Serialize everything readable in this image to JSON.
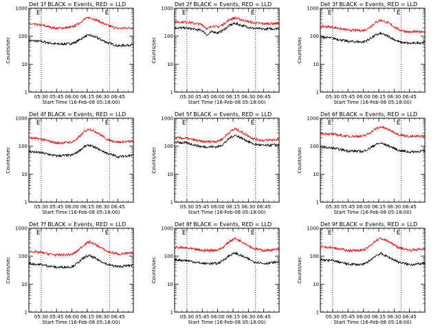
{
  "page": {
    "legend_note": "BLACK = Events, RED = LLD"
  },
  "chart_data": [
    {
      "type": "line",
      "title": "Det 1f BLACK = Events, RED = LLD",
      "xlabel": "Start Time (16-Feb-08 05:18:00)",
      "ylabel": "Counts/sec",
      "ylim": [
        1,
        1000
      ],
      "yscale": "log",
      "ytick_labels": [
        "1",
        "10",
        "100",
        "1000"
      ],
      "xtick_labels": [
        "05:30",
        "05:45",
        "06:00",
        "06:15",
        "06:30",
        "06:45"
      ],
      "xlim": [
        "05:18",
        "07:00"
      ],
      "grid": false,
      "event_markers": [
        {
          "time": "05:30",
          "label": "E"
        },
        {
          "time": "06:37",
          "label": "E"
        }
      ],
      "series": [
        {
          "name": "Events",
          "color": "#000000",
          "x": [
            "05:18",
            "05:30",
            "05:45",
            "06:00",
            "06:05",
            "06:12",
            "06:17",
            "06:24",
            "06:35",
            "06:45",
            "07:00"
          ],
          "y": [
            70,
            65,
            52,
            55,
            65,
            95,
            110,
            90,
            58,
            45,
            50
          ]
        },
        {
          "name": "LLD",
          "color": "#ff0000",
          "x": [
            "05:18",
            "05:30",
            "05:45",
            "06:00",
            "06:05",
            "06:12",
            "06:17",
            "06:24",
            "06:35",
            "06:45",
            "07:00"
          ],
          "y": [
            270,
            250,
            190,
            210,
            260,
            400,
            470,
            380,
            240,
            190,
            200
          ]
        }
      ]
    },
    {
      "type": "line",
      "title": "Det 2f BLACK = Events, RED = LLD",
      "xlabel": "Start Time (16-Feb-08 05:18:00)",
      "ylabel": "Counts/sec",
      "ylim": [
        1,
        1000
      ],
      "yscale": "log",
      "ytick_labels": [
        "1",
        "10",
        "100",
        "1000"
      ],
      "xtick_labels": [
        "05:30",
        "05:45",
        "06:00",
        "06:15",
        "06:30",
        "06:45"
      ],
      "xlim": [
        "05:18",
        "07:00"
      ],
      "grid": false,
      "event_markers": [
        {
          "time": "05:30",
          "label": "E"
        },
        {
          "time": "06:37",
          "label": "E"
        }
      ],
      "series": [
        {
          "name": "Events",
          "color": "#000000",
          "x": [
            "05:18",
            "05:30",
            "05:45",
            "05:50",
            "05:55",
            "06:00",
            "06:05",
            "06:12",
            "06:17",
            "06:24",
            "06:35",
            "06:45",
            "07:00"
          ],
          "y": [
            200,
            195,
            160,
            110,
            150,
            130,
            160,
            250,
            290,
            240,
            190,
            180,
            190
          ]
        },
        {
          "name": "LLD",
          "color": "#ff0000",
          "x": [
            "05:18",
            "05:30",
            "05:45",
            "05:50",
            "05:55",
            "06:00",
            "06:05",
            "06:12",
            "06:17",
            "06:24",
            "06:35",
            "06:45",
            "07:00"
          ],
          "y": [
            330,
            320,
            260,
            180,
            240,
            210,
            260,
            400,
            450,
            380,
            300,
            280,
            290
          ]
        }
      ]
    },
    {
      "type": "line",
      "title": "Det 3f BLACK = Events, RED = LLD",
      "xlabel": "Start Time (16-Feb-08 05:18:00)",
      "ylabel": "Counts/sec",
      "ylim": [
        1,
        1000
      ],
      "yscale": "log",
      "ytick_labels": [
        "1",
        "10",
        "100",
        "1000"
      ],
      "xtick_labels": [
        "05:30",
        "05:45",
        "06:00",
        "06:15",
        "06:30",
        "06:45"
      ],
      "xlim": [
        "05:18",
        "07:00"
      ],
      "grid": false,
      "event_markers": [
        {
          "time": "05:30",
          "label": "E"
        },
        {
          "time": "06:37",
          "label": "E"
        }
      ],
      "series": [
        {
          "name": "Events",
          "color": "#000000",
          "x": [
            "05:18",
            "05:30",
            "05:45",
            "06:00",
            "06:05",
            "06:12",
            "06:17",
            "06:24",
            "06:35",
            "06:45",
            "07:00"
          ],
          "y": [
            95,
            85,
            65,
            62,
            75,
            110,
            125,
            100,
            62,
            55,
            60
          ]
        },
        {
          "name": "LLD",
          "color": "#ff0000",
          "x": [
            "05:18",
            "05:30",
            "05:45",
            "06:00",
            "06:05",
            "06:12",
            "06:17",
            "06:24",
            "06:35",
            "06:45",
            "07:00"
          ],
          "y": [
            230,
            210,
            165,
            160,
            195,
            310,
            380,
            300,
            170,
            140,
            150
          ]
        }
      ]
    },
    {
      "type": "line",
      "title": "Det 4f BLACK = Events, RED = LLD",
      "xlabel": "Start Time (16-Feb-08 05:18:00)",
      "ylabel": "Counts/sec",
      "ylim": [
        1,
        1000
      ],
      "yscale": "log",
      "ytick_labels": [
        "1",
        "10",
        "100",
        "1000"
      ],
      "xtick_labels": [
        "05:30",
        "05:45",
        "06:00",
        "06:15",
        "06:30",
        "06:45"
      ],
      "xlim": [
        "05:18",
        "07:00"
      ],
      "grid": false,
      "event_markers": [
        {
          "time": "05:30",
          "label": "E"
        },
        {
          "time": "06:37",
          "label": "E"
        }
      ],
      "series": [
        {
          "name": "Events",
          "color": "#000000",
          "x": [
            "05:18",
            "05:30",
            "05:45",
            "06:00",
            "06:05",
            "06:12",
            "06:17",
            "06:24",
            "06:35",
            "06:45",
            "07:00"
          ],
          "y": [
            65,
            58,
            45,
            48,
            60,
            95,
            110,
            85,
            55,
            42,
            48
          ]
        },
        {
          "name": "LLD",
          "color": "#ff0000",
          "x": [
            "05:18",
            "05:30",
            "05:45",
            "06:00",
            "06:05",
            "06:12",
            "06:17",
            "06:24",
            "06:35",
            "06:45",
            "07:00"
          ],
          "y": [
            200,
            180,
            130,
            140,
            180,
            330,
            420,
            320,
            170,
            140,
            150
          ]
        }
      ]
    },
    {
      "type": "line",
      "title": "Det 5f BLACK = Events, RED = LLD",
      "xlabel": "Start Time (16-Feb-08 05:18:00)",
      "ylabel": "Counts/sec",
      "ylim": [
        1,
        1000
      ],
      "yscale": "log",
      "ytick_labels": [
        "1",
        "10",
        "100",
        "1000"
      ],
      "xtick_labels": [
        "05:30",
        "05:45",
        "06:00",
        "06:15",
        "06:30",
        "06:45"
      ],
      "xlim": [
        "05:18",
        "07:00"
      ],
      "grid": false,
      "event_markers": [
        {
          "time": "05:30",
          "label": "E"
        },
        {
          "time": "06:37",
          "label": "E"
        }
      ],
      "series": [
        {
          "name": "Events",
          "color": "#000000",
          "x": [
            "05:18",
            "05:30",
            "05:45",
            "06:00",
            "06:05",
            "06:12",
            "06:17",
            "06:24",
            "06:35",
            "06:45",
            "07:00"
          ],
          "y": [
            140,
            130,
            95,
            95,
            115,
            200,
            250,
            190,
            120,
            105,
            115
          ]
        },
        {
          "name": "LLD",
          "color": "#ff0000",
          "x": [
            "05:18",
            "05:30",
            "05:45",
            "06:00",
            "06:05",
            "06:12",
            "06:17",
            "06:24",
            "06:35",
            "06:45",
            "07:00"
          ],
          "y": [
            200,
            190,
            145,
            150,
            185,
            330,
            420,
            310,
            185,
            160,
            175
          ]
        }
      ]
    },
    {
      "type": "line",
      "title": "Det 6f BLACK = Events, RED = LLD",
      "xlabel": "Start Time (16-Feb-08 05:18:00)",
      "ylabel": "Counts/sec",
      "ylim": [
        1,
        1000
      ],
      "yscale": "log",
      "ytick_labels": [
        "1",
        "10",
        "100",
        "1000"
      ],
      "xtick_labels": [
        "05:30",
        "05:45",
        "06:00",
        "06:15",
        "06:30",
        "06:45"
      ],
      "xlim": [
        "05:18",
        "07:00"
      ],
      "grid": false,
      "event_markers": [
        {
          "time": "05:30",
          "label": "E"
        },
        {
          "time": "06:37",
          "label": "E"
        }
      ],
      "series": [
        {
          "name": "Events",
          "color": "#000000",
          "x": [
            "05:18",
            "05:30",
            "05:45",
            "06:00",
            "06:05",
            "06:12",
            "06:17",
            "06:24",
            "06:35",
            "06:45",
            "07:00"
          ],
          "y": [
            95,
            85,
            68,
            65,
            80,
            115,
            130,
            105,
            70,
            62,
            68
          ]
        },
        {
          "name": "LLD",
          "color": "#ff0000",
          "x": [
            "05:18",
            "05:30",
            "05:45",
            "06:00",
            "06:05",
            "06:12",
            "06:17",
            "06:24",
            "06:35",
            "06:45",
            "07:00"
          ],
          "y": [
            290,
            270,
            225,
            230,
            280,
            420,
            500,
            400,
            260,
            220,
            230
          ]
        }
      ]
    },
    {
      "type": "line",
      "title": "Det 7f BLACK = Events, RED = LLD",
      "xlabel": "Start Time (16-Feb-08 05:18:00)",
      "ylabel": "Counts/sec",
      "ylim": [
        1,
        1000
      ],
      "yscale": "log",
      "ytick_labels": [
        "1",
        "10",
        "100",
        "1000"
      ],
      "xtick_labels": [
        "05:30",
        "05:45",
        "06:00",
        "06:15",
        "06:30",
        "06:45"
      ],
      "xlim": [
        "05:18",
        "07:00"
      ],
      "grid": false,
      "event_markers": [
        {
          "time": "05:30",
          "label": "E"
        },
        {
          "time": "06:37",
          "label": "E"
        }
      ],
      "series": [
        {
          "name": "Events",
          "color": "#000000",
          "x": [
            "05:18",
            "05:30",
            "05:45",
            "06:00",
            "06:05",
            "06:12",
            "06:17",
            "06:24",
            "06:35",
            "06:45",
            "07:00"
          ],
          "y": [
            55,
            50,
            40,
            42,
            55,
            90,
            105,
            80,
            50,
            42,
            48
          ]
        },
        {
          "name": "LLD",
          "color": "#ff0000",
          "x": [
            "05:18",
            "05:30",
            "05:45",
            "06:00",
            "06:05",
            "06:12",
            "06:17",
            "06:24",
            "06:35",
            "06:45",
            "07:00"
          ],
          "y": [
            150,
            135,
            110,
            115,
            150,
            260,
            330,
            250,
            145,
            120,
            130
          ]
        }
      ]
    },
    {
      "type": "line",
      "title": "Det 8f BLACK = Events, RED = LLD",
      "xlabel": "Start Time (16-Feb-08 05:18:00)",
      "ylabel": "Counts/sec",
      "ylim": [
        1,
        1000
      ],
      "yscale": "log",
      "ytick_labels": [
        "1",
        "10",
        "100",
        "1000"
      ],
      "xtick_labels": [
        "05:30",
        "05:45",
        "06:00",
        "06:15",
        "06:30",
        "06:45"
      ],
      "xlim": [
        "05:18",
        "07:00"
      ],
      "grid": false,
      "event_markers": [
        {
          "time": "05:30",
          "label": "E"
        },
        {
          "time": "06:37",
          "label": "E"
        }
      ],
      "series": [
        {
          "name": "Events",
          "color": "#000000",
          "x": [
            "05:18",
            "05:30",
            "05:45",
            "06:00",
            "06:05",
            "06:12",
            "06:17",
            "06:24",
            "06:35",
            "06:45",
            "07:00"
          ],
          "y": [
            75,
            70,
            55,
            55,
            70,
            110,
            130,
            100,
            65,
            55,
            62
          ]
        },
        {
          "name": "LLD",
          "color": "#ff0000",
          "x": [
            "05:18",
            "05:30",
            "05:45",
            "06:00",
            "06:05",
            "06:12",
            "06:17",
            "06:24",
            "06:35",
            "06:45",
            "07:00"
          ],
          "y": [
            210,
            195,
            160,
            165,
            205,
            350,
            430,
            330,
            190,
            160,
            175
          ]
        }
      ]
    },
    {
      "type": "line",
      "title": "Det 9f BLACK = Events, RED = LLD",
      "xlabel": "Start Time (16-Feb-08 05:18:00)",
      "ylabel": "Counts/sec",
      "ylim": [
        1,
        1000
      ],
      "yscale": "log",
      "ytick_labels": [
        "1",
        "10",
        "100",
        "1000"
      ],
      "xtick_labels": [
        "05:30",
        "05:45",
        "06:00",
        "06:15",
        "06:30",
        "06:45"
      ],
      "xlim": [
        "05:18",
        "07:00"
      ],
      "grid": false,
      "event_markers": [
        {
          "time": "05:30",
          "label": "E"
        },
        {
          "time": "06:37",
          "label": "E"
        }
      ],
      "series": [
        {
          "name": "Events",
          "color": "#000000",
          "x": [
            "05:18",
            "05:30",
            "05:45",
            "06:00",
            "06:05",
            "06:12",
            "06:17",
            "06:24",
            "06:35",
            "06:45",
            "07:00"
          ],
          "y": [
            75,
            70,
            52,
            50,
            65,
            105,
            125,
            95,
            60,
            50,
            55
          ]
        },
        {
          "name": "LLD",
          "color": "#ff0000",
          "x": [
            "05:18",
            "05:30",
            "05:45",
            "06:00",
            "06:05",
            "06:12",
            "06:17",
            "06:24",
            "06:35",
            "06:45",
            "07:00"
          ],
          "y": [
            220,
            200,
            160,
            165,
            210,
            360,
            440,
            340,
            200,
            165,
            180
          ]
        }
      ]
    }
  ]
}
